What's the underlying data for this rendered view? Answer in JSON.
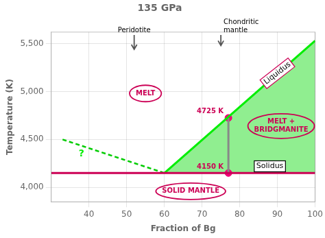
{
  "chart_data": {
    "type": "line",
    "title": "135 GPa",
    "xlabel": "Fraction of Bg",
    "ylabel": "Temperature (K)",
    "xlim": [
      30,
      100
    ],
    "ylim": [
      3850,
      5620
    ],
    "xticks": [
      40,
      50,
      60,
      70,
      80,
      90,
      100
    ],
    "yticks": [
      4000,
      4500,
      5000,
      5500
    ],
    "grid": true,
    "series": [
      {
        "type": "area",
        "color": "#90ee90",
        "x": [
          60,
          100,
          100
        ],
        "values": [
          4150,
          5530,
          4150
        ]
      },
      {
        "type": "area",
        "color": "#90ee90",
        "x": [
          33,
          60,
          60
        ],
        "values": [
          4500,
          4150,
          4150
        ]
      },
      {
        "type": "line",
        "color": "#cc0055",
        "x": [
          30,
          100
        ],
        "values": [
          4150,
          4150
        ]
      },
      {
        "type": "line",
        "color": "#00ee00",
        "x": [
          60,
          100
        ],
        "values": [
          4150,
          5530
        ]
      },
      {
        "type": "line",
        "color": "#00cc00",
        "line_style": "dashed",
        "x": [
          33,
          60
        ],
        "values": [
          4500,
          4150
        ]
      },
      {
        "type": "line",
        "color": "#888888",
        "x": [
          77,
          77
        ],
        "values": [
          4150,
          4725
        ]
      },
      {
        "type": "scatter",
        "color": "#ee0077",
        "marker": "circle",
        "x": [
          77,
          77
        ],
        "values": [
          4150,
          4725
        ]
      }
    ],
    "annotations": [
      {
        "type": "point_label",
        "text": "4725 K",
        "x": 77,
        "y": 4725,
        "color": "#cc0055"
      },
      {
        "type": "point_label",
        "text": "4150 K",
        "x": 77,
        "y": 4150,
        "color": "#cc0055"
      },
      {
        "type": "ellipse",
        "text": "MELT",
        "x": 55,
        "y": 4980,
        "color": "#cc0055"
      },
      {
        "type": "ellipse",
        "text": "SOLID MANTLE",
        "x": 67,
        "y": 3960,
        "color": "#cc0055"
      },
      {
        "type": "ellipse",
        "text": "MELT +\nBRIDGMANITE",
        "x": 91,
        "y": 4640,
        "color": "#cc0055"
      },
      {
        "type": "box_rotated",
        "text": "Liquidus",
        "x": 90,
        "y": 5190,
        "color": "#cc0055"
      },
      {
        "type": "box",
        "text": "Solidus",
        "x": 88,
        "y": 4220,
        "color": "#000000"
      },
      {
        "type": "label",
        "text": "?",
        "x": 38,
        "y": 4350,
        "color": "#00ee00"
      },
      {
        "type": "arrow",
        "text": "Peridotite",
        "x": 52,
        "y": 5590,
        "y_end": 5440,
        "color": "#555555"
      },
      {
        "type": "arrow_left_text",
        "text": "Chondritic\nmantle",
        "x": 75,
        "y": 5590,
        "y_end": 5480,
        "color": "#555555"
      }
    ]
  }
}
